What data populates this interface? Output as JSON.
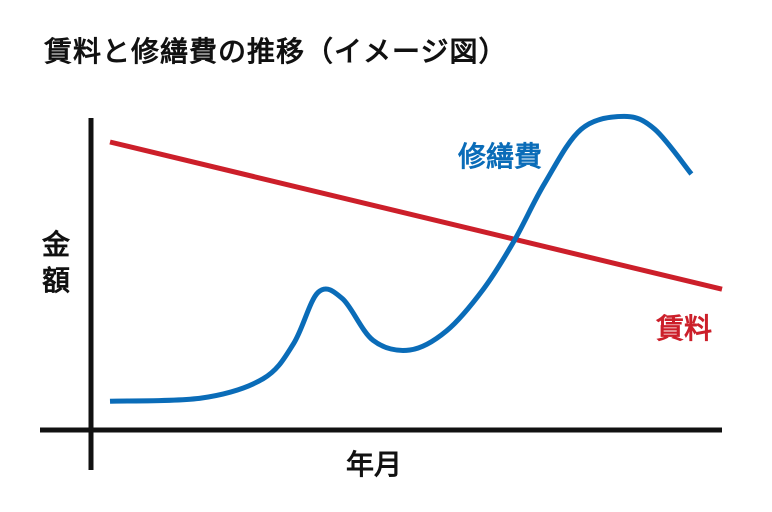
{
  "title": "賃料と修繕費の推移（イメージ図）",
  "colors": {
    "repair": "#0a6cb8",
    "rent": "#cc1f2a",
    "axis": "#111111"
  },
  "chart_data": {
    "type": "line",
    "title": "賃料と修繕費の推移（イメージ図）",
    "xlabel": "年月",
    "ylabel": "金額",
    "ylim": [
      0,
      100
    ],
    "xlim": [
      0,
      100
    ],
    "grid": false,
    "legend": "none",
    "series": [
      {
        "name": "修繕費",
        "color": "#0a6cb8",
        "points": [
          [
            0,
            9
          ],
          [
            15,
            10
          ],
          [
            25,
            16
          ],
          [
            30,
            27
          ],
          [
            34,
            43
          ],
          [
            38,
            41
          ],
          [
            43,
            28
          ],
          [
            49,
            25
          ],
          [
            55,
            31
          ],
          [
            61,
            44
          ],
          [
            66,
            59
          ],
          [
            71,
            77
          ],
          [
            77,
            94
          ],
          [
            84,
            98
          ],
          [
            89,
            94
          ],
          [
            95,
            80
          ]
        ]
      },
      {
        "name": "賃料",
        "color": "#cc1f2a",
        "points": [
          [
            0,
            90
          ],
          [
            100,
            44
          ]
        ]
      }
    ]
  }
}
